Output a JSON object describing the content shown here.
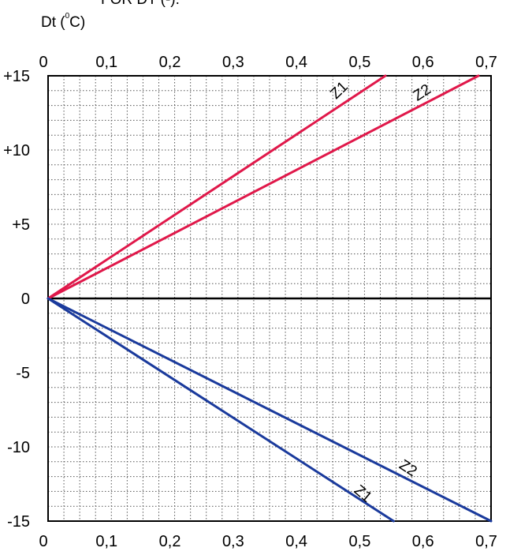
{
  "header_fragment": "FOR DT (-):",
  "y_axis_label": {
    "prefix": "Dt (",
    "superscript": "0",
    "suffix": "C)"
  },
  "colors": {
    "positive": "#e0184a",
    "negative": "#1a3a9c",
    "grid": "#555555",
    "axis": "#000000"
  },
  "chart_data": {
    "type": "line",
    "xlim": [
      0,
      0.7
    ],
    "ylim": [
      -15,
      15
    ],
    "x_ticks": [
      0,
      0.1,
      0.2,
      0.3,
      0.4,
      0.5,
      0.6,
      0.7
    ],
    "x_tick_labels": [
      "0",
      "0,1",
      "0,2",
      "0,3",
      "0,4",
      "0,5",
      "0,6",
      "0,7"
    ],
    "y_ticks": [
      15,
      10,
      5,
      0,
      -5,
      -10,
      -15
    ],
    "y_tick_labels": [
      "+15",
      "+10",
      "+5",
      "0",
      "-5",
      "-10",
      "-15"
    ],
    "grid": true,
    "series": [
      {
        "name": "Z1",
        "sign": "positive",
        "x": [
          0,
          0.533
        ],
        "y": [
          0,
          15
        ]
      },
      {
        "name": "Z2",
        "sign": "positive",
        "x": [
          0,
          0.68
        ],
        "y": [
          0,
          15
        ]
      },
      {
        "name": "Z1",
        "sign": "negative",
        "x": [
          0,
          0.546
        ],
        "y": [
          0,
          -15
        ]
      },
      {
        "name": "Z2",
        "sign": "negative",
        "x": [
          0,
          0.7
        ],
        "y": [
          0,
          -15
        ]
      }
    ],
    "annotations": [
      {
        "text": "Z1",
        "x": 0.465,
        "y": 13.8,
        "angle": -44
      },
      {
        "text": "Z2",
        "x": 0.595,
        "y": 13.6,
        "angle": -33
      },
      {
        "text": "Z2",
        "x": 0.565,
        "y": -11.7,
        "angle": 33
      },
      {
        "text": "Z1",
        "x": 0.493,
        "y": -13.4,
        "angle": 40
      }
    ]
  }
}
